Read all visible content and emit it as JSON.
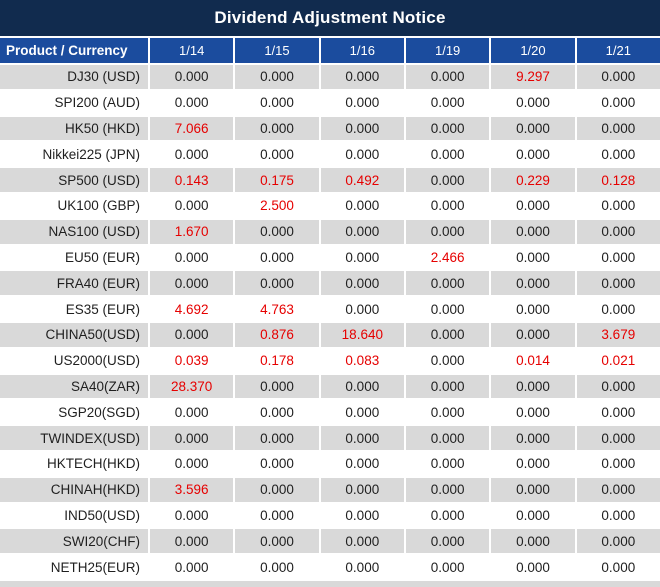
{
  "title": "Dividend Adjustment Notice",
  "colors": {
    "title_bg": "#112b4e",
    "header_bg": "#1b4c9e",
    "row_alt_bg": "#d9d9d9",
    "row_bg": "#ffffff",
    "value_text": "#1f1f1f",
    "red": "#e60000",
    "header_text": "#ffffff"
  },
  "table": {
    "product_header": "Product / Currency",
    "date_headers": [
      "1/14",
      "1/15",
      "1/16",
      "1/19",
      "1/20",
      "1/21"
    ],
    "rows": [
      {
        "product": "DJ30 (USD)",
        "values": [
          "0.000",
          "0.000",
          "0.000",
          "0.000",
          "9.297",
          "0.000"
        ],
        "red_indexes": [
          4
        ]
      },
      {
        "product": "SPI200 (AUD)",
        "values": [
          "0.000",
          "0.000",
          "0.000",
          "0.000",
          "0.000",
          "0.000"
        ],
        "red_indexes": []
      },
      {
        "product": "HK50 (HKD)",
        "values": [
          "7.066",
          "0.000",
          "0.000",
          "0.000",
          "0.000",
          "0.000"
        ],
        "red_indexes": [
          0
        ]
      },
      {
        "product": "Nikkei225 (JPN)",
        "values": [
          "0.000",
          "0.000",
          "0.000",
          "0.000",
          "0.000",
          "0.000"
        ],
        "red_indexes": []
      },
      {
        "product": "SP500 (USD)",
        "values": [
          "0.143",
          "0.175",
          "0.492",
          "0.000",
          "0.229",
          "0.128"
        ],
        "red_indexes": [
          0,
          1,
          2,
          4,
          5
        ]
      },
      {
        "product": "UK100 (GBP)",
        "values": [
          "0.000",
          "2.500",
          "0.000",
          "0.000",
          "0.000",
          "0.000"
        ],
        "red_indexes": [
          1
        ]
      },
      {
        "product": "NAS100 (USD)",
        "values": [
          "1.670",
          "0.000",
          "0.000",
          "0.000",
          "0.000",
          "0.000"
        ],
        "red_indexes": [
          0
        ]
      },
      {
        "product": "EU50 (EUR)",
        "values": [
          "0.000",
          "0.000",
          "0.000",
          "2.466",
          "0.000",
          "0.000"
        ],
        "red_indexes": [
          3
        ]
      },
      {
        "product": "FRA40 (EUR)",
        "values": [
          "0.000",
          "0.000",
          "0.000",
          "0.000",
          "0.000",
          "0.000"
        ],
        "red_indexes": []
      },
      {
        "product": "ES35 (EUR)",
        "values": [
          "4.692",
          "4.763",
          "0.000",
          "0.000",
          "0.000",
          "0.000"
        ],
        "red_indexes": [
          0,
          1
        ]
      },
      {
        "product": "CHINA50(USD)",
        "values": [
          "0.000",
          "0.876",
          "18.640",
          "0.000",
          "0.000",
          "3.679"
        ],
        "red_indexes": [
          1,
          2,
          5
        ]
      },
      {
        "product": "US2000(USD)",
        "values": [
          "0.039",
          "0.178",
          "0.083",
          "0.000",
          "0.014",
          "0.021"
        ],
        "red_indexes": [
          0,
          1,
          2,
          4,
          5
        ]
      },
      {
        "product": "SA40(ZAR)",
        "values": [
          "28.370",
          "0.000",
          "0.000",
          "0.000",
          "0.000",
          "0.000"
        ],
        "red_indexes": [
          0
        ]
      },
      {
        "product": "SGP20(SGD)",
        "values": [
          "0.000",
          "0.000",
          "0.000",
          "0.000",
          "0.000",
          "0.000"
        ],
        "red_indexes": []
      },
      {
        "product": "TWINDEX(USD)",
        "values": [
          "0.000",
          "0.000",
          "0.000",
          "0.000",
          "0.000",
          "0.000"
        ],
        "red_indexes": []
      },
      {
        "product": "HKTECH(HKD)",
        "values": [
          "0.000",
          "0.000",
          "0.000",
          "0.000",
          "0.000",
          "0.000"
        ],
        "red_indexes": []
      },
      {
        "product": "CHINAH(HKD)",
        "values": [
          "3.596",
          "0.000",
          "0.000",
          "0.000",
          "0.000",
          "0.000"
        ],
        "red_indexes": [
          0
        ]
      },
      {
        "product": "IND50(USD)",
        "values": [
          "0.000",
          "0.000",
          "0.000",
          "0.000",
          "0.000",
          "0.000"
        ],
        "red_indexes": []
      },
      {
        "product": "SWI20(CHF)",
        "values": [
          "0.000",
          "0.000",
          "0.000",
          "0.000",
          "0.000",
          "0.000"
        ],
        "red_indexes": []
      },
      {
        "product": "NETH25(EUR)",
        "values": [
          "0.000",
          "0.000",
          "0.000",
          "0.000",
          "0.000",
          "0.000"
        ],
        "red_indexes": []
      }
    ]
  }
}
